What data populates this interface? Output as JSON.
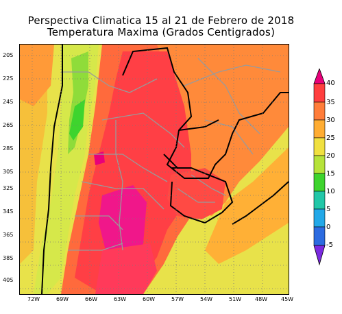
{
  "title": {
    "line1": "Perspectiva Climatica 15 al 21 de Febrero de 2018",
    "line2": "Temperatura Maxima (Grados Centigrados)"
  },
  "map": {
    "lat_labels": [
      "20S",
      "22S",
      "24S",
      "26S",
      "28S",
      "30S",
      "32S",
      "34S",
      "36S",
      "38S",
      "40S"
    ],
    "lon_labels": [
      "72W",
      "69W",
      "66W",
      "63W",
      "60W",
      "57W",
      "54W",
      "51W",
      "48W",
      "45W"
    ]
  },
  "colorbar": {
    "labels": [
      "40",
      "35",
      "30",
      "25",
      "20",
      "15",
      "10",
      "5",
      "0",
      "-5"
    ],
    "colors": [
      "#e8007a",
      "#ff3f3f",
      "#ff7d3a",
      "#ffad33",
      "#f0e040",
      "#b6e33a",
      "#3ed42e",
      "#22c7a8",
      "#22a8e8",
      "#2c6be0",
      "#7a2ae0"
    ]
  }
}
